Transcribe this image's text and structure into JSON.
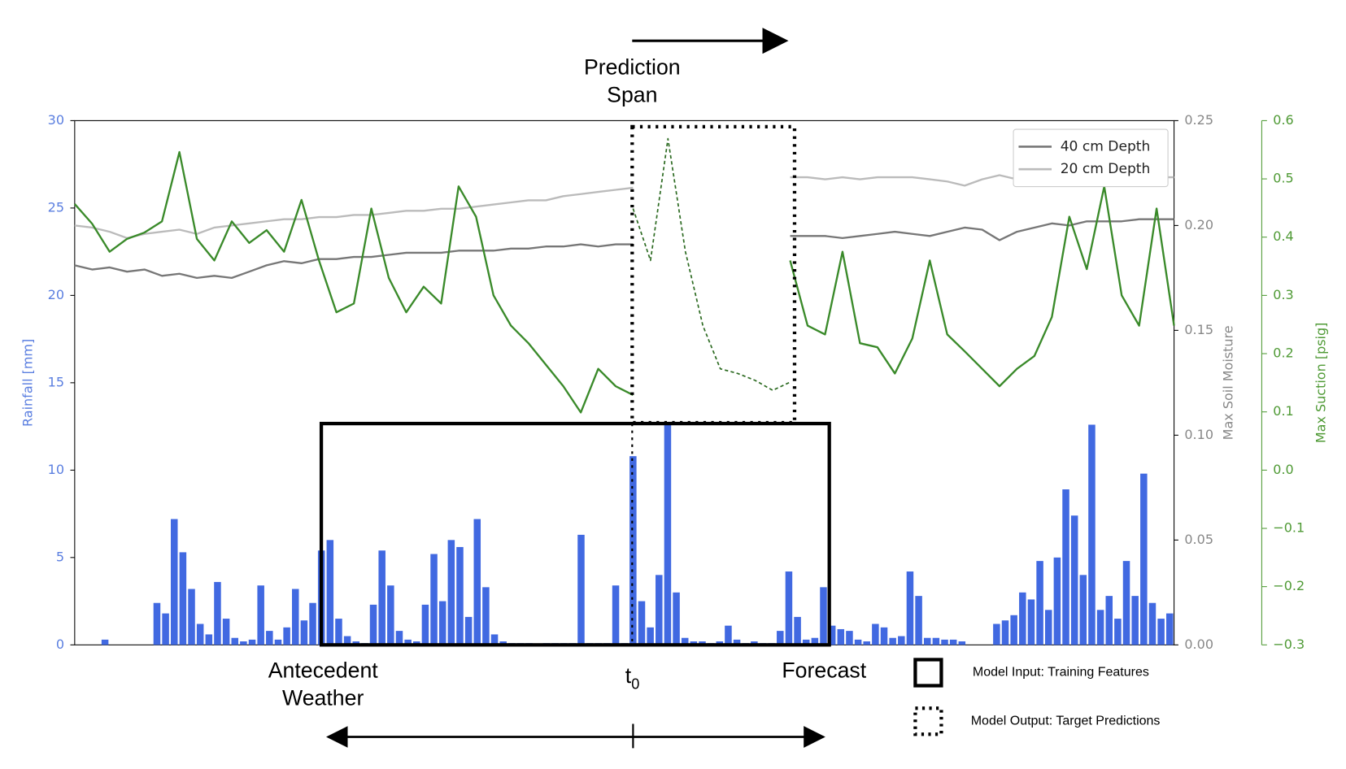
{
  "chart_data": {
    "type": "combo",
    "xlim": [
      0,
      127
    ],
    "ylim": [
      0,
      30
    ],
    "yticks": [
      0,
      5,
      10,
      15,
      20,
      25,
      30
    ],
    "ylabel": "Rainfall [mm]",
    "y2lim": [
      0,
      0.25
    ],
    "y2ticks": [
      {
        "value": 0,
        "label": "0.00"
      },
      {
        "value": 0.05,
        "label": "0.05"
      },
      {
        "value": 0.1,
        "label": "0.10"
      },
      {
        "value": 0.15,
        "label": "0.15"
      },
      {
        "value": 0.2,
        "label": "0.20"
      },
      {
        "value": 0.25,
        "label": "0.25"
      }
    ],
    "y2label": "Max Soil Moisture",
    "y3lim": [
      -0.3,
      0.6
    ],
    "y3ticks": [
      {
        "value": -0.3,
        "label": "−0.3"
      },
      {
        "value": -0.2,
        "label": "−0.2"
      },
      {
        "value": -0.1,
        "label": "−0.1"
      },
      {
        "value": 0,
        "label": "0.0"
      },
      {
        "value": 0.1,
        "label": "0.1"
      },
      {
        "value": 0.2,
        "label": "0.2"
      },
      {
        "value": 0.3,
        "label": "0.3"
      },
      {
        "value": 0.4,
        "label": "0.4"
      },
      {
        "value": 0.5,
        "label": "0.5"
      },
      {
        "value": 0.6,
        "label": "0.6"
      }
    ],
    "y3label": "Max Suction [psig]",
    "legend": "upper right",
    "series": [
      {
        "type": "bar",
        "axis": "y",
        "color": "#4169e1",
        "values": [
          0,
          0,
          0,
          0.3,
          0,
          0,
          0,
          0,
          0,
          2.4,
          1.8,
          7.2,
          5.3,
          3.2,
          1.2,
          0.6,
          3.6,
          1.5,
          0.4,
          0.2,
          0.3,
          3.4,
          0.8,
          0.3,
          1.0,
          3.2,
          1.4,
          2.4,
          5.4,
          6.0,
          1.5,
          0.5,
          0.2,
          0.1,
          2.3,
          5.4,
          3.4,
          0.8,
          0.3,
          0.2,
          2.3,
          5.2,
          2.5,
          6.0,
          5.6,
          1.6,
          7.2,
          3.3,
          0.6,
          0.2,
          0.1,
          0.1,
          0.1,
          0,
          0.1,
          0.1,
          0.1,
          0.1,
          6.3,
          0.1,
          0.1,
          0.1,
          3.4,
          0.1,
          10.8,
          2.5,
          1.0,
          4.0,
          12.6,
          3.0,
          0.4,
          0.2,
          0.2,
          0.1,
          0.2,
          1.1,
          0.3,
          0.1,
          0.2,
          0.1,
          0.1,
          0.8,
          4.2,
          1.6,
          0.3,
          0.4,
          3.3,
          1.1,
          0.9,
          0.8,
          0.3,
          0.2,
          1.2,
          1.0,
          0.4,
          0.5,
          4.2,
          2.8,
          0.4,
          0.4,
          0.3,
          0.3,
          0.2,
          0,
          0,
          0,
          1.2,
          1.4,
          1.7,
          3.0,
          2.6,
          4.8,
          2.0,
          5.0,
          8.9,
          7.4,
          4.0,
          12.6,
          2.0,
          2.8,
          1.5,
          4.8,
          2.8,
          9.8,
          2.4,
          1.5,
          1.8
        ]
      },
      {
        "type": "line",
        "axis": "y2",
        "name": "40 cm Depth",
        "color": "#777777",
        "values": [
          0.181,
          0.179,
          0.18,
          0.178,
          0.179,
          0.176,
          0.177,
          0.175,
          0.176,
          0.175,
          0.178,
          0.181,
          0.183,
          0.182,
          0.184,
          0.184,
          0.185,
          0.185,
          0.186,
          0.187,
          0.187,
          0.187,
          0.188,
          0.188,
          0.188,
          0.189,
          0.189,
          0.19,
          0.19,
          0.191,
          0.19,
          0.191,
          0.191,
          null,
          null,
          null,
          null,
          null,
          null,
          null,
          null,
          0.195,
          0.195,
          0.195,
          0.194,
          0.195,
          0.196,
          0.197,
          0.196,
          0.195,
          0.197,
          0.199,
          0.198,
          0.193,
          0.197,
          0.199,
          0.201,
          0.2,
          0.202,
          0.202,
          0.202,
          0.203,
          0.203,
          0.203
        ]
      },
      {
        "type": "line",
        "axis": "y2",
        "name": "20 cm Depth",
        "color": "#bbbbbb",
        "values": [
          0.2,
          0.199,
          0.197,
          0.194,
          0.196,
          0.197,
          0.198,
          0.196,
          0.199,
          0.2,
          0.201,
          0.202,
          0.203,
          0.203,
          0.204,
          0.204,
          0.205,
          0.205,
          0.206,
          0.207,
          0.207,
          0.208,
          0.208,
          0.209,
          0.21,
          0.211,
          0.212,
          0.212,
          0.214,
          0.215,
          0.216,
          0.217,
          0.218,
          null,
          null,
          null,
          null,
          null,
          null,
          null,
          null,
          0.223,
          0.223,
          0.222,
          0.223,
          0.222,
          0.223,
          0.223,
          0.223,
          0.222,
          0.221,
          0.219,
          0.222,
          0.224,
          0.222,
          0.219,
          0.221,
          0.22,
          0.222,
          0.223,
          0.222,
          0.222,
          0.223,
          0.223
        ]
      },
      {
        "type": "line",
        "axis": "y3",
        "color": "#3a8a2a",
        "values": [
          0.457,
          0.423,
          0.375,
          0.397,
          0.408,
          0.427,
          0.546,
          0.397,
          0.36,
          0.427,
          0.39,
          0.412,
          0.375,
          0.464,
          0.36,
          0.271,
          0.286,
          0.449,
          0.33,
          0.271,
          0.315,
          0.286,
          0.487,
          0.435,
          0.3,
          0.248,
          0.218,
          0.181,
          0.144,
          0.099,
          0.174,
          0.144,
          0.129,
          null,
          null,
          null,
          null,
          null,
          null,
          null,
          null,
          0.36,
          0.248,
          0.233,
          0.375,
          0.218,
          0.211,
          0.166,
          0.226,
          0.36,
          0.233,
          0.204,
          0.174,
          0.144,
          0.174,
          0.196,
          0.263,
          0.435,
          0.345,
          0.487,
          0.3,
          0.248,
          0.449,
          0.248
        ]
      },
      {
        "type": "line",
        "axis": "y3",
        "color": "#2d6b22",
        "dashed": true,
        "values": [
          null,
          null,
          null,
          null,
          null,
          null,
          null,
          null,
          null,
          null,
          null,
          null,
          null,
          null,
          null,
          null,
          null,
          null,
          null,
          null,
          null,
          null,
          null,
          null,
          null,
          null,
          null,
          null,
          null,
          null,
          null,
          null,
          0.449,
          0.36,
          0.569,
          0.375,
          0.248,
          0.174,
          0.166,
          0.154,
          0.137,
          0.151,
          null,
          null,
          null,
          null,
          null,
          null,
          null,
          null,
          null,
          null,
          null,
          null,
          null,
          null,
          null,
          null,
          null,
          null,
          null,
          null,
          null,
          null
        ]
      }
    ]
  },
  "annotations": {
    "prediction_span": [
      "Prediction",
      "Span"
    ],
    "antecedent_weather": [
      "Antecedent",
      "Weather"
    ],
    "t0": {
      "text": "t",
      "subscript": "0"
    },
    "forecast": "Forecast"
  },
  "box_legend": [
    "Model Input: Training Features",
    "Model Output: Target Predictions"
  ]
}
